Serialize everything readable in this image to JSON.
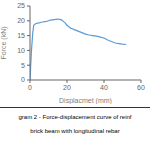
{
  "chart_data": {
    "type": "line",
    "x_label": "Displacmet (mm)",
    "y_label": "Force (kN)",
    "annotations": [
      "gram 2 - Force-displacement curve of reinf",
      "brick beam with longitudinal rebar"
    ],
    "x": [
      0,
      0.3,
      0.8,
      1.5,
      2.0,
      3.0,
      4.0,
      5.0,
      6.0,
      7.0,
      8.0,
      9.0,
      10.0,
      11.0,
      12.0,
      13.0,
      14.0,
      15.0,
      16.0,
      17.0,
      18.0,
      19.0,
      20.0,
      22.0,
      24.0,
      26.0,
      28.0,
      30.0,
      32.0,
      34.0,
      36.0,
      38.0,
      40.0,
      42.0,
      44.0,
      46.0,
      48.0,
      50.0,
      52.0
    ],
    "values": [
      0,
      4.0,
      10.0,
      16.0,
      18.5,
      19.0,
      19.2,
      19.3,
      19.5,
      19.6,
      19.7,
      19.8,
      20.0,
      20.2,
      20.3,
      20.4,
      20.5,
      20.6,
      20.5,
      20.3,
      19.8,
      19.3,
      18.5,
      17.5,
      17.0,
      16.5,
      16.0,
      15.5,
      15.2,
      15.0,
      14.8,
      14.5,
      14.2,
      13.5,
      13.0,
      12.5,
      12.3,
      12.1,
      12.0
    ],
    "color": "#5b9bd5",
    "xlim": [
      0,
      60
    ],
    "ylim": [
      0,
      25
    ],
    "xticks": [
      0,
      20,
      40,
      60
    ],
    "yticks": [
      0,
      5,
      10,
      15,
      20,
      25
    ],
    "grid": false
  }
}
